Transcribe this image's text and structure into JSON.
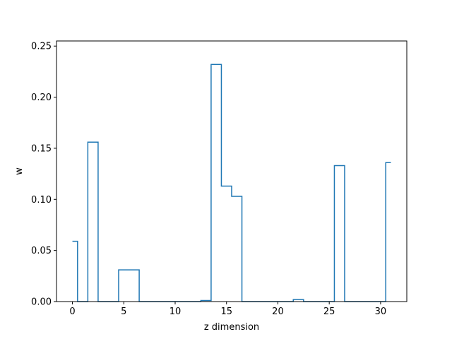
{
  "chart_data": {
    "type": "line",
    "drawstyle": "steps-mid",
    "title": "",
    "xlabel": "z dimension",
    "ylabel": "w",
    "xlim": [
      -1.55,
      32.55
    ],
    "ylim": [
      0,
      0.255
    ],
    "xticks": [
      0,
      5,
      10,
      15,
      20,
      25,
      30
    ],
    "xtick_labels": [
      "0",
      "5",
      "10",
      "15",
      "20",
      "25",
      "30"
    ],
    "yticks": [
      0,
      0.05,
      0.1,
      0.15,
      0.2,
      0.25
    ],
    "ytick_labels": [
      "0.00",
      "0.05",
      "0.10",
      "0.15",
      "0.20",
      "0.25"
    ],
    "grid": false,
    "legend": "none",
    "series": [
      {
        "color": "#1f77b4",
        "x": [
          0,
          1,
          2,
          3,
          4,
          5,
          6,
          7,
          8,
          9,
          10,
          11,
          12,
          13,
          14,
          15,
          16,
          17,
          18,
          19,
          20,
          21,
          22,
          23,
          24,
          25,
          26,
          27,
          28,
          29,
          30,
          31
        ],
        "y": [
          0.059,
          0,
          0.156,
          0,
          0,
          0.031,
          0.031,
          0,
          0,
          0,
          0,
          0,
          0,
          0.001,
          0.232,
          0.113,
          0.103,
          0,
          0,
          0,
          0,
          0,
          0.002,
          0,
          0,
          0,
          0.133,
          0,
          0,
          0,
          0,
          0.136
        ]
      }
    ]
  }
}
